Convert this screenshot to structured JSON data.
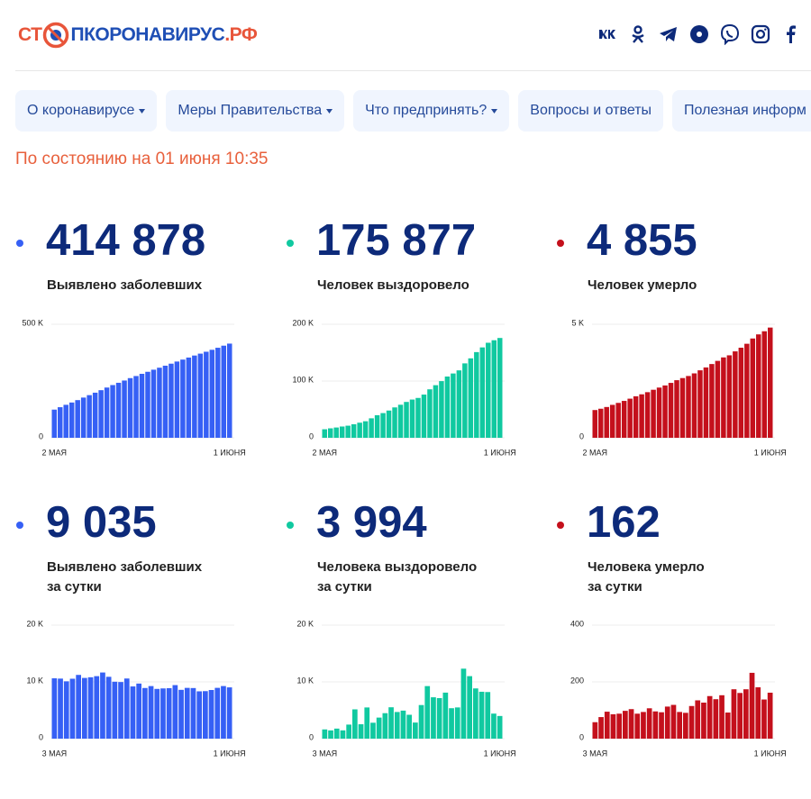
{
  "header": {
    "logo": [
      {
        "text": "СТ",
        "color": "#e8553a"
      },
      {
        "text": "ПКОРОНАВИРУС",
        "color": "#1f4fb5"
      },
      {
        "text": ".РФ",
        "color": "#e8553a"
      }
    ]
  },
  "nav": [
    {
      "label": "О коронавирусе",
      "dropdown": true
    },
    {
      "label": "Меры Правительства",
      "dropdown": true
    },
    {
      "label": "Что предпринять?",
      "dropdown": true
    },
    {
      "label": "Вопросы и ответы",
      "dropdown": false
    },
    {
      "label": "Полезная информ",
      "dropdown": false
    }
  ],
  "status": "По состоянию на 01 июня 10:35",
  "chart_data": [
    {
      "type": "bar",
      "total": "414 878",
      "label": [
        "Выявлено заболевших"
      ],
      "color": "#3660f5",
      "categories": [
        "2 МАЯ",
        null,
        null,
        null,
        null,
        null,
        null,
        null,
        null,
        null,
        null,
        null,
        null,
        null,
        null,
        null,
        null,
        null,
        null,
        null,
        null,
        null,
        null,
        null,
        null,
        null,
        null,
        null,
        null,
        null,
        "1 ИЮНЯ"
      ],
      "values": [
        124054,
        134687,
        145268,
        155370,
        165929,
        177160,
        187859,
        198676,
        209688,
        221344,
        232243,
        242271,
        252245,
        262843,
        272043,
        281752,
        290678,
        299941,
        308705,
        317554,
        326448,
        335882,
        344481,
        353427,
        362342,
        370680,
        379051,
        387623,
        396575,
        405843,
        414878
      ],
      "ylim": [
        0,
        500000
      ],
      "yticks": [
        0,
        {
          "value": 500000,
          "label": "500 K"
        }
      ]
    },
    {
      "type": "bar",
      "total": "175 877",
      "label": [
        "Человек выздоровело"
      ],
      "color": "#10c9a0",
      "categories": [
        "2 МАЯ",
        null,
        null,
        null,
        null,
        null,
        null,
        null,
        null,
        null,
        null,
        null,
        null,
        null,
        null,
        null,
        null,
        null,
        null,
        null,
        null,
        null,
        null,
        null,
        null,
        null,
        null,
        null,
        null,
        null,
        "1 ИЮНЯ"
      ],
      "values": [
        15013,
        16639,
        18095,
        19865,
        21327,
        23803,
        26608,
        29145,
        34306,
        39801,
        43512,
        48003,
        53530,
        58226,
        63166,
        67373,
        70209,
        76130,
        85392,
        92681,
        99825,
        107936,
        113299,
        118798,
        131129,
        139979,
        150993,
        159257,
        167469,
        171883,
        175877
      ],
      "ylim": [
        0,
        200000
      ],
      "yticks": [
        0,
        {
          "value": 100000,
          "label": "100 K"
        },
        {
          "value": 200000,
          "label": "200 K"
        }
      ]
    },
    {
      "type": "bar",
      "total": "4 855",
      "label": [
        "Человек умерло"
      ],
      "color": "#c4101c",
      "categories": [
        "2 МАЯ",
        null,
        null,
        null,
        null,
        null,
        null,
        null,
        null,
        null,
        null,
        null,
        null,
        null,
        null,
        null,
        null,
        null,
        null,
        null,
        null,
        null,
        null,
        null,
        null,
        null,
        null,
        null,
        null,
        null,
        "1 ИЮНЯ"
      ],
      "values": [
        1222,
        1280,
        1356,
        1451,
        1537,
        1625,
        1723,
        1827,
        1915,
        2009,
        2116,
        2212,
        2305,
        2418,
        2537,
        2631,
        2722,
        2837,
        2972,
        3099,
        3249,
        3388,
        3541,
        3633,
        3807,
        3968,
        4142,
        4374,
        4555,
        4693,
        4855
      ],
      "ylim": [
        0,
        5000
      ],
      "yticks": [
        0,
        {
          "value": 5000,
          "label": "5 K"
        }
      ]
    },
    {
      "type": "bar",
      "total": "9 035",
      "label": [
        "Выявлено заболевших",
        "за сутки"
      ],
      "color": "#3660f5",
      "categories": [
        "3 МАЯ",
        null,
        null,
        null,
        null,
        null,
        null,
        null,
        null,
        null,
        null,
        null,
        null,
        null,
        null,
        null,
        null,
        null,
        null,
        null,
        null,
        null,
        null,
        null,
        null,
        null,
        null,
        null,
        null,
        "1 ИЮНЯ"
      ],
      "values": [
        10633,
        10581,
        10102,
        10559,
        11231,
        10699,
        10817,
        11012,
        11656,
        10899,
        10028,
        9974,
        10598,
        9200,
        9709,
        8926,
        9263,
        8764,
        8849,
        8894,
        9434,
        8599,
        8946,
        8915,
        8338,
        8371,
        8572,
        8952,
        9268,
        9035
      ],
      "ylim": [
        0,
        20000
      ],
      "yticks": [
        0,
        {
          "value": 10000,
          "label": "10 K"
        },
        {
          "value": 20000,
          "label": "20 K"
        }
      ]
    },
    {
      "type": "bar",
      "total": "3 994",
      "label": [
        "Человека выздоровело",
        "за сутки"
      ],
      "color": "#10c9a0",
      "categories": [
        "3 МАЯ",
        null,
        null,
        null,
        null,
        null,
        null,
        null,
        null,
        null,
        null,
        null,
        null,
        null,
        null,
        null,
        null,
        null,
        null,
        null,
        null,
        null,
        null,
        null,
        null,
        null,
        null,
        null,
        null,
        "1 ИЮНЯ"
      ],
      "values": [
        1626,
        1456,
        1770,
        1462,
        2476,
        5161,
        2537,
        5495,
        2805,
        3711,
        4491,
        5527,
        4696,
        4940,
        4207,
        2836,
        5921,
        9262,
        7289,
        7144,
        8111,
        5363,
        5499,
        12331,
        11014,
        8850,
        8264,
        8212,
        4414,
        3994
      ],
      "ylim": [
        0,
        20000
      ],
      "yticks": [
        0,
        {
          "value": 10000,
          "label": "10 K"
        },
        {
          "value": 20000,
          "label": "20 K"
        }
      ]
    },
    {
      "type": "bar",
      "total": "162",
      "label": [
        "Человека умерло",
        "за сутки"
      ],
      "color": "#c4101c",
      "categories": [
        "3 МАЯ",
        null,
        null,
        null,
        null,
        null,
        null,
        null,
        null,
        null,
        null,
        null,
        null,
        null,
        null,
        null,
        null,
        null,
        null,
        null,
        null,
        null,
        null,
        null,
        null,
        null,
        null,
        null,
        null,
        "1 ИЮНЯ"
      ],
      "values": [
        58,
        76,
        95,
        86,
        88,
        98,
        104,
        88,
        94,
        107,
        96,
        93,
        113,
        119,
        94,
        91,
        115,
        135,
        127,
        150,
        139,
        153,
        92,
        174,
        161,
        174,
        232,
        181,
        138,
        162
      ],
      "ylim": [
        0,
        400
      ],
      "yticks": [
        0,
        200,
        400
      ]
    }
  ]
}
